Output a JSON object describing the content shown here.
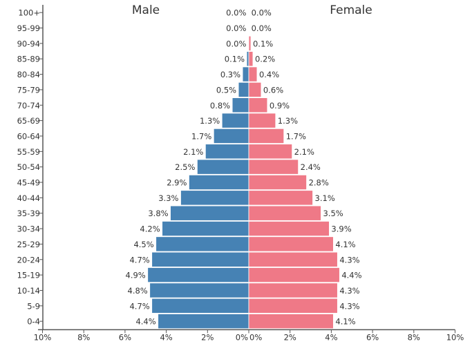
{
  "chart_data": {
    "type": "bar",
    "subtype": "population-pyramid",
    "title": "",
    "left_label": "Male",
    "right_label": "Female",
    "categories": [
      "100+",
      "95-99",
      "90-94",
      "85-89",
      "80-84",
      "75-79",
      "70-74",
      "65-69",
      "60-64",
      "55-59",
      "50-54",
      "45-49",
      "40-44",
      "35-39",
      "30-34",
      "25-29",
      "20-24",
      "15-19",
      "10-14",
      "5-9",
      "0-4"
    ],
    "series": [
      {
        "name": "Male",
        "color": "#4682b4",
        "values": [
          0.0,
          0.0,
          0.0,
          0.1,
          0.3,
          0.5,
          0.8,
          1.3,
          1.7,
          2.1,
          2.5,
          2.9,
          3.3,
          3.8,
          4.2,
          4.5,
          4.7,
          4.9,
          4.8,
          4.7,
          4.4
        ]
      },
      {
        "name": "Female",
        "color": "#ef7987",
        "values": [
          0.0,
          0.0,
          0.1,
          0.2,
          0.4,
          0.6,
          0.9,
          1.3,
          1.7,
          2.1,
          2.4,
          2.8,
          3.1,
          3.5,
          3.9,
          4.1,
          4.3,
          4.4,
          4.3,
          4.3,
          4.1
        ]
      }
    ],
    "xlim": [
      -10,
      10
    ],
    "xticks_left": [
      "10%",
      "8%",
      "6%",
      "4%",
      "2%",
      "0%"
    ],
    "xticks_right": [
      "0%",
      "2%",
      "4%",
      "6%",
      "8%",
      "10%"
    ],
    "value_suffix": "%",
    "grid": false
  }
}
